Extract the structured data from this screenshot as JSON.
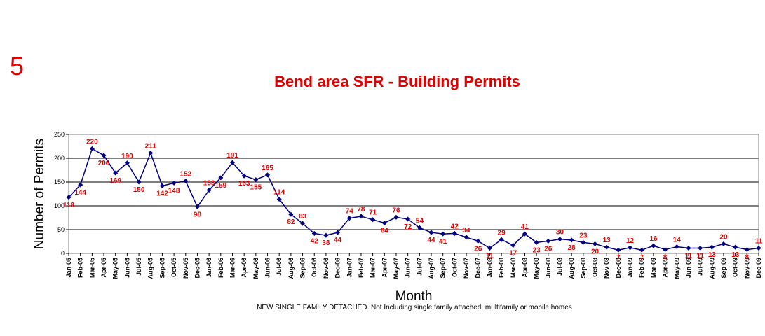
{
  "slide": {
    "number": "5",
    "footnote": "NEW SINGLE FAMILY DETACHED. Not Including single family attached, multifamily or mobile homes"
  },
  "chart_data": {
    "type": "line",
    "title": "Bend area SFR - Building Permits",
    "xlabel": "Month",
    "ylabel": "Number of Permits",
    "ylim": [
      0,
      250
    ],
    "yticks": [
      0,
      50,
      100,
      150,
      200,
      250
    ],
    "grid": "horizontal",
    "legend": "none",
    "line_color": "#000080",
    "label_color": "#e00000",
    "categories": [
      "Jan-05",
      "Feb-05",
      "Mar-05",
      "Apr-05",
      "May-05",
      "Jun-05",
      "Jul-05",
      "Aug-05",
      "Sep-05",
      "Oct-05",
      "Nov-05",
      "Dec-05",
      "Jan-06",
      "Feb-06",
      "Mar-06",
      "Apr-06",
      "May-06",
      "Jun-06",
      "Jul-06",
      "Aug-06",
      "Sep-06",
      "Oct-06",
      "Nov-06",
      "Dec-06",
      "Jan-07",
      "Feb-07",
      "Mar-07",
      "Apr-07",
      "May-07",
      "Jun-07",
      "Jul-07",
      "Aug-07",
      "Sep-07",
      "Oct-07",
      "Nov-07",
      "Dec-07",
      "Jan-08",
      "Feb-08",
      "Mar-08",
      "Apr-08",
      "May-08",
      "Jun-08",
      "Jul-08",
      "Aug-08",
      "Sep-08",
      "Oct-08",
      "Nov-08",
      "Dec-08",
      "Jan-09",
      "Feb-09",
      "Mar-09",
      "Apr-09",
      "May-09",
      "Jun-09",
      "Jul-09",
      "Aug-09",
      "Sep-09",
      "Oct-09",
      "Nov-09",
      "Dec-09"
    ],
    "values": [
      118,
      144,
      220,
      206,
      169,
      190,
      150,
      211,
      142,
      148,
      152,
      98,
      133,
      159,
      191,
      163,
      155,
      165,
      114,
      82,
      63,
      42,
      38,
      44,
      74,
      78,
      71,
      64,
      76,
      72,
      54,
      44,
      41,
      42,
      34,
      26,
      11,
      29,
      17,
      41,
      23,
      26,
      30,
      28,
      23,
      20,
      13,
      7,
      12,
      7,
      16,
      8,
      14,
      11,
      11,
      13,
      20,
      13,
      8,
      11
    ],
    "data_labels": [
      "118",
      "144",
      "220",
      "206",
      "169",
      "190",
      "150",
      "211",
      "142",
      "148",
      "152",
      "98",
      "133",
      "159",
      "191",
      "163",
      "155",
      "165",
      "114",
      "82",
      "63",
      "42",
      "38",
      "44",
      "74",
      "78",
      "71",
      "64",
      "76",
      "72",
      "54",
      "44",
      "41",
      "42",
      "34",
      "26",
      "11",
      "29",
      "17",
      "41",
      "23",
      "26",
      "30",
      "28",
      "23",
      "20",
      "13",
      "7",
      "12",
      "7",
      "16",
      "8",
      "14",
      "11",
      "11",
      "13",
      "20",
      "13",
      "8",
      "11"
    ]
  }
}
